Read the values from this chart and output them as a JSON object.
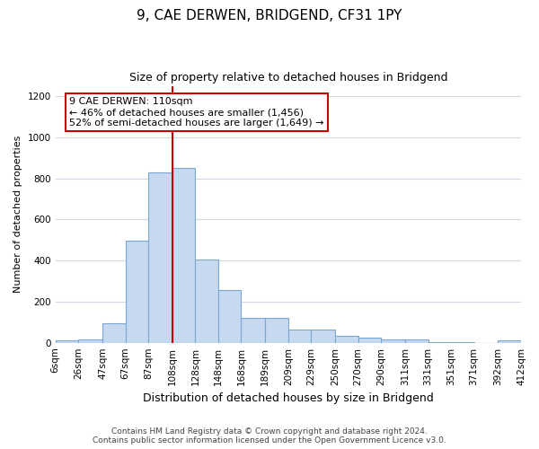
{
  "title1": "9, CAE DERWEN, BRIDGEND, CF31 1PY",
  "title2": "Size of property relative to detached houses in Bridgend",
  "xlabel": "Distribution of detached houses by size in Bridgend",
  "ylabel": "Number of detached properties",
  "footer1": "Contains HM Land Registry data © Crown copyright and database right 2024.",
  "footer2": "Contains public sector information licensed under the Open Government Licence v3.0.",
  "annotation_title": "9 CAE DERWEN: 110sqm",
  "annotation_line1": "← 46% of detached houses are smaller (1,456)",
  "annotation_line2": "52% of semi-detached houses are larger (1,649) →",
  "bar_categories": [
    "6sqm",
    "26sqm",
    "47sqm",
    "67sqm",
    "87sqm",
    "108sqm",
    "128sqm",
    "148sqm",
    "168sqm",
    "189sqm",
    "209sqm",
    "229sqm",
    "250sqm",
    "270sqm",
    "290sqm",
    "311sqm",
    "331sqm",
    "351sqm",
    "371sqm",
    "392sqm",
    "412sqm"
  ],
  "bar_left_edges": [
    6,
    26,
    47,
    67,
    87,
    108,
    128,
    148,
    168,
    189,
    209,
    229,
    250,
    270,
    290,
    311,
    331,
    351,
    371,
    392
  ],
  "bar_widths": [
    20,
    21,
    20,
    20,
    21,
    20,
    20,
    20,
    21,
    20,
    20,
    21,
    20,
    20,
    21,
    20,
    20,
    20,
    21,
    20
  ],
  "bar_heights": [
    10,
    15,
    95,
    495,
    830,
    850,
    405,
    255,
    120,
    120,
    65,
    65,
    35,
    25,
    15,
    15,
    5,
    5,
    0,
    10
  ],
  "bar_color": "#c6d9f0",
  "bar_edge_color": "#7ba7d0",
  "vline_x": 108,
  "vline_color": "#cc0000",
  "grid_color": "#d0d8e4",
  "ylim": [
    0,
    1250
  ],
  "yticks": [
    0,
    200,
    400,
    600,
    800,
    1000,
    1200
  ],
  "bg_color": "#ffffff",
  "annotation_box_color": "#ffffff",
  "annotation_box_edge": "#cc0000",
  "title1_fontsize": 11,
  "title2_fontsize": 9,
  "xlabel_fontsize": 9,
  "ylabel_fontsize": 8,
  "tick_fontsize": 7.5,
  "footer_fontsize": 6.5
}
